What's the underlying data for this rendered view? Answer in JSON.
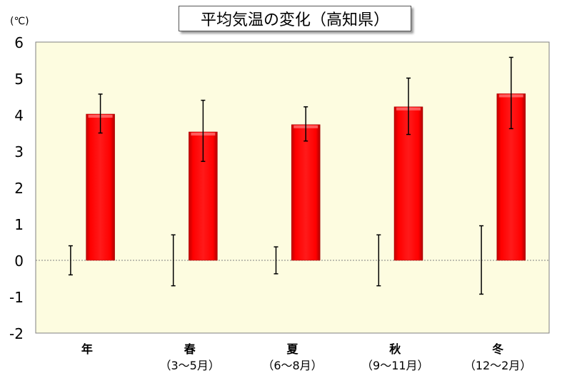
{
  "chart_data": {
    "type": "bar",
    "title": "平均気温の変化（高知県）",
    "ylabel": "(℃)",
    "ylim": [
      -2,
      6
    ],
    "yticks": [
      "-2",
      "-1",
      "0",
      "1",
      "2",
      "3",
      "4",
      "5",
      "6"
    ],
    "categories": [
      {
        "name": "年",
        "sub": ""
      },
      {
        "name": "春",
        "sub": "（3～5月）"
      },
      {
        "name": "夏",
        "sub": "（6～8月）"
      },
      {
        "name": "秋",
        "sub": "（9～11月）"
      },
      {
        "name": "冬",
        "sub": "（12～2月）"
      }
    ],
    "values": [
      4.02,
      3.53,
      3.73,
      4.22,
      4.58
    ],
    "error_ranges": [
      [
        3.5,
        4.57
      ],
      [
        2.72,
        4.4
      ],
      [
        3.28,
        4.22
      ],
      [
        3.46,
        5.01
      ],
      [
        3.62,
        5.58
      ]
    ],
    "variability_ranges": [
      [
        -0.4,
        0.4
      ],
      [
        -0.7,
        0.7
      ],
      [
        -0.37,
        0.37
      ],
      [
        -0.7,
        0.7
      ],
      [
        -0.93,
        0.95
      ]
    ],
    "plot_background": "#fdfce0",
    "bar_color": "#ff0000",
    "grid": false
  }
}
